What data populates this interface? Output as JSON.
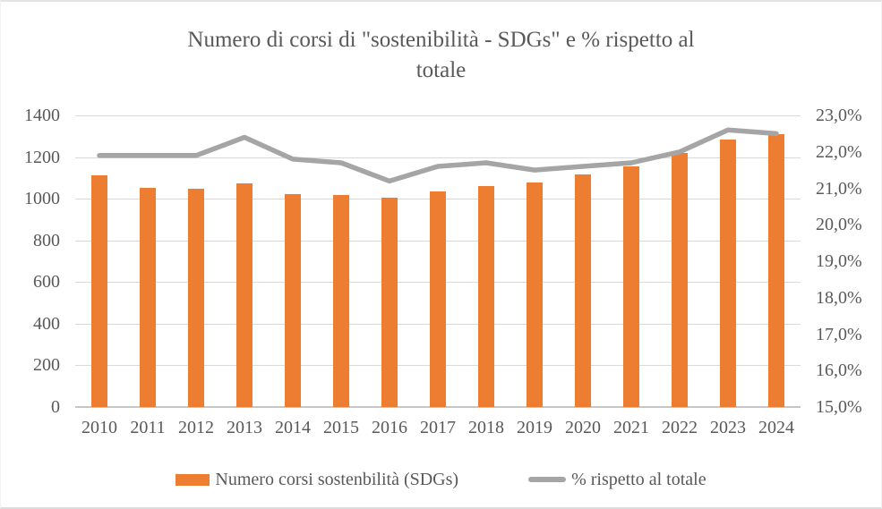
{
  "chart_data": {
    "type": "bar+line",
    "title": "Numero di corsi di \"sostenibilità - SDGs\" e % rispetto al totale",
    "title_lines": [
      "Numero di corsi di \"sostenibilità - SDGs\" e % rispetto al",
      "totale"
    ],
    "categories": [
      "2010",
      "2011",
      "2012",
      "2013",
      "2014",
      "2015",
      "2016",
      "2017",
      "2018",
      "2019",
      "2020",
      "2021",
      "2022",
      "2023",
      "2024"
    ],
    "series": [
      {
        "name": "Numero corsi sostenbilità (SDGs)",
        "type": "bar",
        "axis": "left",
        "color": "#ed7d31",
        "values": [
          1114,
          1052,
          1047,
          1072,
          1024,
          1018,
          1003,
          1036,
          1061,
          1076,
          1117,
          1157,
          1219,
          1286,
          1310
        ]
      },
      {
        "name": "% rispetto al totale",
        "type": "line",
        "axis": "right",
        "color": "#a5a5a5",
        "values": [
          21.9,
          21.9,
          21.9,
          22.4,
          21.8,
          21.7,
          21.2,
          21.6,
          21.7,
          21.5,
          21.6,
          21.7,
          22.0,
          22.6,
          22.5
        ]
      }
    ],
    "left_axis": {
      "min": 0,
      "max": 1400,
      "step": 200,
      "tick_labels": [
        "0",
        "200",
        "400",
        "600",
        "800",
        "1000",
        "1200",
        "1400"
      ]
    },
    "right_axis": {
      "min": 15,
      "max": 23,
      "step": 1,
      "tick_labels": [
        "15,0%",
        "16,0%",
        "17,0%",
        "18,0%",
        "19,0%",
        "20,0%",
        "21,0%",
        "22,0%",
        "23,0%"
      ]
    },
    "grid": true,
    "legend_position": "bottom",
    "colors": {
      "grid": "#d9d9d9",
      "axis_line": "#c6c6c6",
      "text": "#595959",
      "bar": "#ed7d31",
      "line": "#a5a5a5"
    }
  }
}
